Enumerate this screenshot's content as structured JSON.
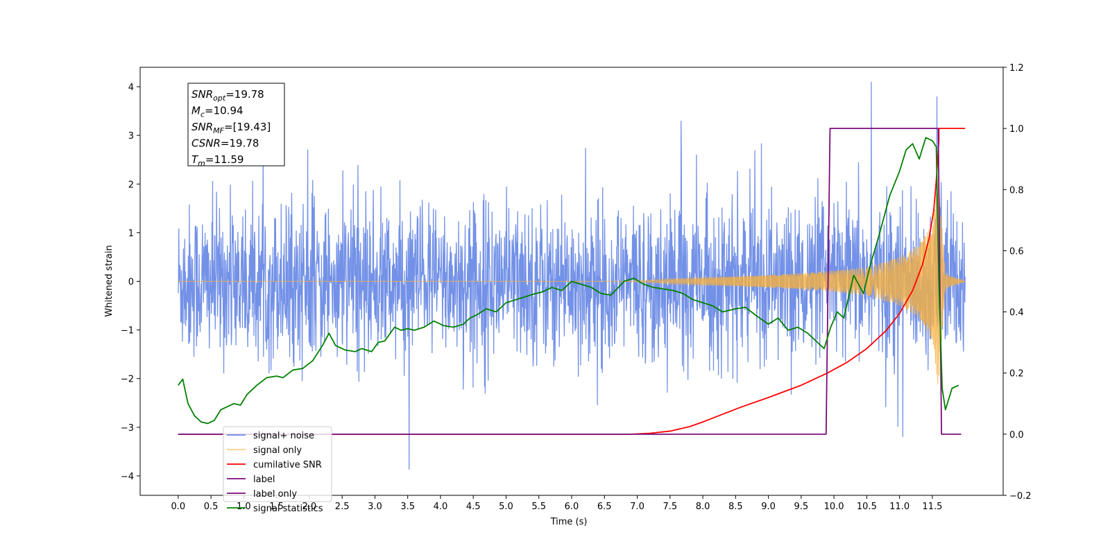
{
  "chart_data": {
    "type": "line",
    "title": "",
    "xlabel": "Time (s)",
    "ylabel": "Whitened strain",
    "ylabel_right": "",
    "xlim": [
      -0.58,
      12.58
    ],
    "ylim": [
      -4.4,
      4.4
    ],
    "ylim_right": [
      -0.2,
      1.2
    ],
    "x_ticks": [
      0.0,
      0.5,
      1.0,
      1.5,
      2.0,
      2.5,
      3.0,
      3.5,
      4.0,
      4.5,
      5.0,
      5.5,
      6.0,
      6.5,
      7.0,
      7.5,
      8.0,
      8.5,
      9.0,
      9.5,
      10.0,
      10.5,
      11.0,
      11.5
    ],
    "x_tick_labels": [
      "0.0",
      "0.5",
      "1.0",
      "1.5",
      "2.0",
      "2.5",
      "3.0",
      "3.5",
      "4.0",
      "4.5",
      "5.0",
      "5.5",
      "6.0",
      "6.5",
      "7.0",
      "7.5",
      "8.0",
      "8.5",
      "9.0",
      "9.5",
      "10.0",
      "10.5",
      "11.0",
      "11.5"
    ],
    "y_ticks": [
      -4,
      -3,
      -2,
      -1,
      0,
      1,
      2,
      3,
      4
    ],
    "y_tick_labels": [
      "−4",
      "−3",
      "−2",
      "−1",
      "0",
      "1",
      "2",
      "3",
      "4"
    ],
    "y_right_ticks": [
      -0.2,
      0.0,
      0.2,
      0.4,
      0.6,
      0.8,
      1.0,
      1.2
    ],
    "y_right_tick_labels": [
      "−0.2",
      "0.0",
      "0.2",
      "0.4",
      "0.6",
      "0.8",
      "1.0",
      "1.2"
    ],
    "grid": false,
    "legend_placement": "lower-left",
    "series": [
      {
        "name": "signal+ noise",
        "axis": "left",
        "color": "#6b8be6",
        "style": "dense noise, roughly within ±2.3 with spikes up to 4.1 and down to -3.9",
        "x_range": [
          0.0,
          12.0
        ],
        "notable_peaks": [
          [
            10.57,
            4.1
          ],
          [
            11.57,
            3.8
          ],
          [
            7.67,
            3.3
          ],
          [
            3.52,
            -3.87
          ],
          [
            11.05,
            -3.2
          ]
        ]
      },
      {
        "name": "signal only",
        "axis": "left",
        "color": "#f5b041",
        "style": "chirp whose envelope grows toward merger near 11.59 s then rings down",
        "x_range": [
          0.0,
          12.0
        ],
        "envelope": {
          "x": [
            6.8,
            7.5,
            8.0,
            8.5,
            9.0,
            9.5,
            10.0,
            10.5,
            11.0,
            11.3,
            11.5,
            11.59,
            11.7,
            12.0
          ],
          "y": [
            0.0,
            0.05,
            0.08,
            0.1,
            0.13,
            0.17,
            0.22,
            0.3,
            0.5,
            0.75,
            1.2,
            2.2,
            0.15,
            0.0
          ]
        }
      },
      {
        "name": "cumilative SNR",
        "axis": "right",
        "color": "#ff0000",
        "x": [
          0.0,
          6.5,
          6.9,
          7.2,
          7.5,
          7.8,
          8.0,
          8.3,
          8.6,
          9.0,
          9.5,
          9.9,
          10.2,
          10.5,
          10.8,
          11.0,
          11.2,
          11.35,
          11.45,
          11.52,
          11.56,
          11.6,
          11.6,
          12.0
        ],
        "y": [
          0.0,
          0.0,
          0.0,
          0.003,
          0.01,
          0.025,
          0.04,
          0.065,
          0.09,
          0.12,
          0.16,
          0.2,
          0.235,
          0.28,
          0.34,
          0.395,
          0.47,
          0.555,
          0.64,
          0.73,
          0.83,
          0.96,
          1.0,
          1.0
        ]
      },
      {
        "name": "label",
        "axis": "right",
        "color": "#7b0a7b",
        "x": [
          0.0,
          9.88,
          9.94,
          11.59,
          11.64,
          11.94
        ],
        "y": [
          0.0,
          0.0,
          1.0,
          1.0,
          0.0,
          0.0
        ]
      },
      {
        "name": "label only",
        "axis": "right",
        "color": "#7b0a7b",
        "style": "hidden behind label",
        "x": [],
        "y": []
      },
      {
        "name": "signal statistics",
        "axis": "right",
        "color": "#008000",
        "x": [
          0.0,
          0.07,
          0.15,
          0.25,
          0.35,
          0.45,
          0.55,
          0.65,
          0.75,
          0.85,
          0.95,
          1.05,
          1.2,
          1.35,
          1.5,
          1.6,
          1.75,
          1.9,
          2.05,
          2.2,
          2.3,
          2.4,
          2.55,
          2.7,
          2.8,
          2.95,
          3.05,
          3.15,
          3.3,
          3.4,
          3.5,
          3.6,
          3.75,
          3.9,
          4.05,
          4.2,
          4.35,
          4.45,
          4.55,
          4.7,
          4.85,
          5.0,
          5.15,
          5.3,
          5.45,
          5.55,
          5.7,
          5.85,
          6.0,
          6.15,
          6.3,
          6.45,
          6.6,
          6.8,
          6.95,
          7.1,
          7.25,
          7.4,
          7.55,
          7.7,
          7.85,
          8.0,
          8.15,
          8.3,
          8.5,
          8.65,
          8.8,
          9.0,
          9.15,
          9.3,
          9.45,
          9.6,
          9.75,
          9.85,
          9.95,
          10.05,
          10.15,
          10.3,
          10.45,
          10.55,
          10.7,
          10.85,
          11.0,
          11.1,
          11.2,
          11.3,
          11.4,
          11.5,
          11.56,
          11.6,
          11.65,
          11.7,
          11.8,
          11.9
        ],
        "y": [
          0.16,
          0.18,
          0.1,
          0.06,
          0.04,
          0.035,
          0.045,
          0.08,
          0.09,
          0.1,
          0.095,
          0.13,
          0.16,
          0.185,
          0.19,
          0.185,
          0.21,
          0.215,
          0.24,
          0.29,
          0.33,
          0.29,
          0.275,
          0.27,
          0.28,
          0.27,
          0.3,
          0.305,
          0.35,
          0.34,
          0.345,
          0.34,
          0.35,
          0.37,
          0.355,
          0.35,
          0.36,
          0.38,
          0.39,
          0.41,
          0.4,
          0.43,
          0.44,
          0.45,
          0.46,
          0.465,
          0.48,
          0.47,
          0.5,
          0.49,
          0.48,
          0.46,
          0.455,
          0.5,
          0.51,
          0.49,
          0.48,
          0.475,
          0.47,
          0.46,
          0.44,
          0.43,
          0.42,
          0.4,
          0.41,
          0.415,
          0.39,
          0.36,
          0.38,
          0.34,
          0.35,
          0.33,
          0.3,
          0.28,
          0.35,
          0.4,
          0.38,
          0.52,
          0.46,
          0.55,
          0.66,
          0.78,
          0.86,
          0.93,
          0.95,
          0.9,
          0.97,
          0.96,
          0.94,
          0.5,
          0.15,
          0.08,
          0.15,
          0.16
        ]
      }
    ],
    "annotation_box": {
      "lines": [
        {
          "var": "SNR",
          "sub": "opt",
          "value": "=19.78"
        },
        {
          "var": "M",
          "sub": "c",
          "value": "=10.94"
        },
        {
          "var": "SNR",
          "sub": "MF",
          "value": "=[19.43]"
        },
        {
          "var": "CSNR",
          "sub": "",
          "value": "=19.78"
        },
        {
          "var": "T",
          "sub": "m",
          "value": "=11.59"
        }
      ]
    }
  }
}
